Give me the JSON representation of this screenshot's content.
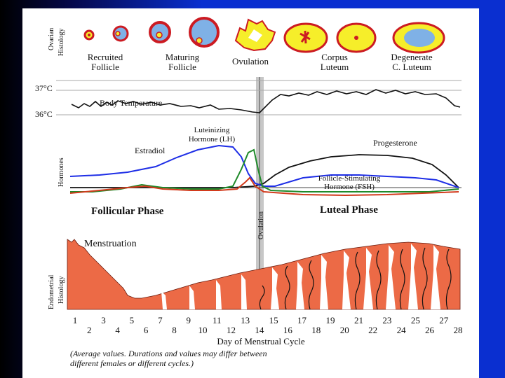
{
  "colors": {
    "estradiol": "#1e2ee6",
    "lh": "#1f8a2a",
    "fsh": "#d23a1c",
    "progesterone": "#111111",
    "endometrium": "#ec6a46",
    "follicle_yellow": "#f6ee2a",
    "follicle_red": "#cc1b22",
    "follicle_blue": "#7fb1e6"
  },
  "ovarian": {
    "side_label_line1": "Ovarian",
    "side_label_line2": "Histology",
    "stages": [
      {
        "line1": "Recruited",
        "line2": "Follicle"
      },
      {
        "line1": "Maturing",
        "line2": "Follicle"
      },
      {
        "line1": "Ovulation",
        "line2": ""
      },
      {
        "line1": "Corpus",
        "line2": "Luteum"
      },
      {
        "line1": "Degenerate",
        "line2": "C. Luteum"
      }
    ]
  },
  "temperature": {
    "high": "37°C",
    "low": "36°C",
    "curve_label": "Body Temperature"
  },
  "hormones": {
    "side_label": "Hormones",
    "lh_line1": "Luteinizing",
    "lh_line2": "Hormone (LH)",
    "estradiol": "Estradiol",
    "progesterone": "Progesterone",
    "fsh_line1": "Follicle-Stimulating",
    "fsh_line2": "Hormone (FSH)"
  },
  "phases": {
    "follicular": "Follicular Phase",
    "luteal": "Luteal Phase",
    "ovulation_marker": "Ovulation"
  },
  "endometrial": {
    "side_label_line1": "Endometrial",
    "side_label_line2": "Histology",
    "menstruation": "Menstruation"
  },
  "days": {
    "odd_row": [
      "1",
      "3",
      "5",
      "7",
      "9",
      "11",
      "13",
      "15",
      "17",
      "19",
      "21",
      "23",
      "25",
      "27"
    ],
    "even_row": [
      "2",
      "4",
      "6",
      "8",
      "10",
      "12",
      "14",
      "16",
      "18",
      "20",
      "22",
      "24",
      "26",
      "28"
    ],
    "axis_title": "Day of Menstrual Cycle"
  },
  "footnote": {
    "line1": "(Average values. Durations and values may differ between",
    "line2": "different females or different cycles.)"
  }
}
